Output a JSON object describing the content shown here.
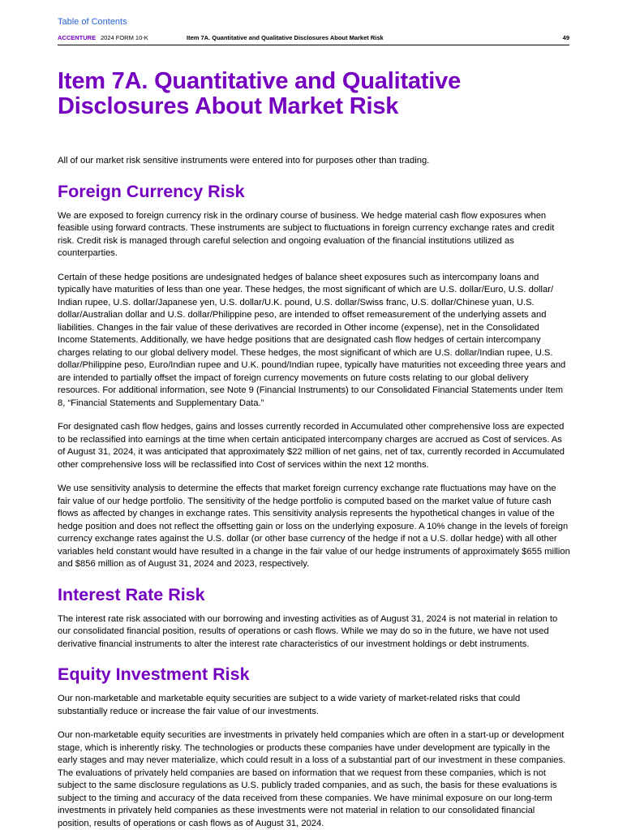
{
  "nav": {
    "toc_link": "Table of Contents"
  },
  "header": {
    "brand": "ACCENTURE",
    "form": "2024 FORM 10-K",
    "section": "Item 7A. Quantitative and Qualitative Disclosures About Market Risk",
    "page_number": "49"
  },
  "title": "Item 7A. Quantitative and Qualitative Disclosures About Market Risk",
  "intro": "All of our market risk sensitive instruments were entered into for purposes other than trading.",
  "foreign_currency": {
    "heading": "Foreign Currency Risk",
    "paragraphs": [
      "We are exposed to foreign currency risk in the ordinary course of business. We hedge material cash flow exposures when feasible using forward contracts. These instruments are subject to fluctuations in foreign currency exchange rates and credit risk. Credit risk is managed through careful selection and ongoing evaluation of the financial institutions utilized as counterparties.",
      "Certain of these hedge positions are undesignated hedges of balance sheet exposures such as intercompany loans and typically have maturities of less than one year. These hedges, the most significant of which are U.S. dollar/Euro, U.S. dollar/ Indian rupee, U.S. dollar/Japanese yen, U.S. dollar/U.K. pound, U.S. dollar/Swiss franc, U.S. dollar/Chinese yuan, U.S. dollar/Australian dollar and U.S. dollar/Philippine peso, are intended to offset remeasurement of the underlying assets and liabilities. Changes in the fair value of these derivatives are recorded in Other income (expense), net in the Consolidated Income Statements. Additionally, we have hedge positions that are designated cash flow hedges of certain intercompany charges relating to our global delivery model. These hedges, the most significant of which are U.S. dollar/Indian rupee, U.S. dollar/Philippine peso, Euro/Indian rupee and U.K. pound/Indian rupee, typically have maturities not exceeding three years and are intended to partially offset the impact of foreign currency movements on future costs relating to our global delivery resources. For additional information, see Note 9 (Financial Instruments) to our Consolidated Financial Statements under Item 8, “Financial Statements and Supplementary Data.”",
      "For designated cash flow hedges, gains and losses currently recorded in Accumulated other comprehensive loss are expected to be reclassified into earnings at the time when certain anticipated intercompany charges are accrued as Cost of services. As of August 31, 2024, it was anticipated that approximately $22 million of net gains, net of tax, currently recorded in Accumulated other comprehensive loss will be reclassified into Cost of services within the next 12 months.",
      "We use sensitivity analysis to determine the effects that market foreign currency exchange rate fluctuations may have on the fair value of our hedge portfolio. The sensitivity of the hedge portfolio is computed based on the market value of future cash flows as affected by changes in exchange rates. This sensitivity analysis represents the hypothetical changes in value of the hedge position and does not reflect the offsetting gain or loss on the underlying exposure. A 10% change in the levels of foreign currency exchange rates against the U.S. dollar (or other base currency of the hedge if not a U.S. dollar hedge) with all other variables held constant would have resulted in a change in the fair value of our hedge instruments of approximately $655 million and $856 million as of August 31, 2024 and 2023, respectively."
    ]
  },
  "interest_rate": {
    "heading": "Interest Rate Risk",
    "paragraphs": [
      "The interest rate risk associated with our borrowing and investing activities as of August 31, 2024 is not material in relation to our consolidated financial position, results of operations or cash flows. While we may do so in the future, we have not used derivative financial instruments to alter the interest rate characteristics of our investment holdings or debt instruments."
    ]
  },
  "equity_investment": {
    "heading": "Equity Investment Risk",
    "paragraphs": [
      "Our non-marketable and marketable equity securities are subject to a wide variety of market-related risks that could substantially reduce or increase the fair value of our investments.",
      "Our non-marketable equity securities are investments in privately held companies which are often in a start-up or development stage, which is inherently risky. The technologies or products these companies have under development are typically in the early stages and may never materialize, which could result in a loss of a substantial part of our investment in these companies. The evaluations of privately held companies are based on information that we request from these companies, which is not subject to the same disclosure regulations as U.S. publicly traded companies, and as such, the basis for these evaluations is subject to the timing and accuracy of the data received from these companies. We have minimal exposure on our long-term investments in privately held companies as these investments were not material in relation to our consolidated financial position, results of operations or cash flows as of August 31, 2024."
    ]
  }
}
